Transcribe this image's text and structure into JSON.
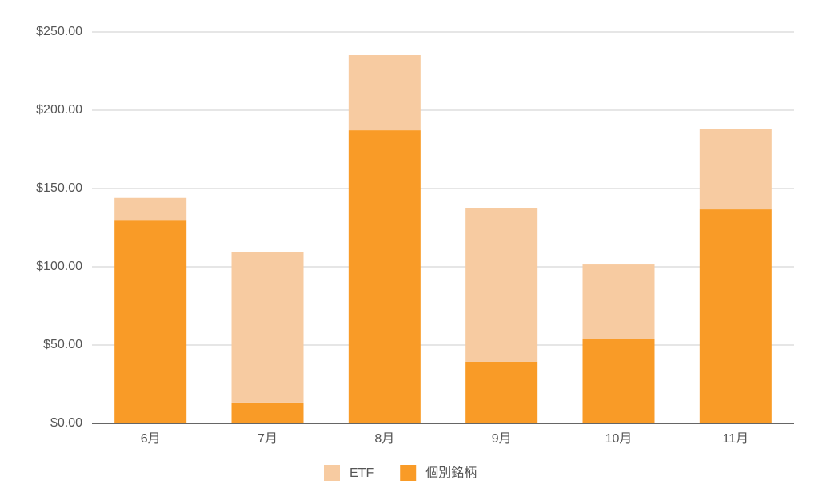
{
  "chart_data": {
    "type": "stacked_bar",
    "categories": [
      "6月",
      "7月",
      "8月",
      "9月",
      "10月",
      "11月"
    ],
    "series": [
      {
        "name": "ETF",
        "color": "#f7cba1",
        "values": [
          14.5,
          96,
          48,
          98,
          47.5,
          51.5
        ]
      },
      {
        "name": "個別銘柄",
        "color": "#f99b27",
        "values": [
          129.5,
          13.3,
          187.2,
          39.3,
          54,
          136.7
        ]
      }
    ],
    "ylim": [
      0,
      250
    ],
    "yticks": [
      {
        "value": 0,
        "label": "$0.00"
      },
      {
        "value": 50,
        "label": "$50.00"
      },
      {
        "value": 100,
        "label": "$100.00"
      },
      {
        "value": 150,
        "label": "$150.00"
      },
      {
        "value": 200,
        "label": "$200.00"
      },
      {
        "value": 250,
        "label": "$250.00"
      }
    ],
    "grid": true,
    "legend": "bottom"
  }
}
